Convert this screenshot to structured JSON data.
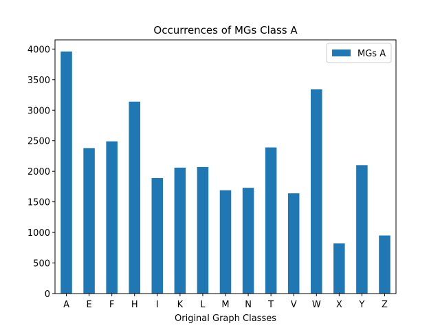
{
  "chart_data": {
    "type": "bar",
    "title": "Occurrences of MGs Class A",
    "xlabel": "Original Graph Classes",
    "ylabel": "",
    "categories": [
      "A",
      "E",
      "F",
      "H",
      "I",
      "K",
      "L",
      "M",
      "N",
      "T",
      "V",
      "W",
      "X",
      "Y",
      "Z"
    ],
    "series": [
      {
        "name": "MGs A",
        "color": "#1f77b4",
        "values": [
          3960,
          2380,
          2490,
          3140,
          1890,
          2060,
          2070,
          1690,
          1730,
          2390,
          1640,
          3340,
          820,
          2100,
          950
        ]
      }
    ],
    "ylim": [
      0,
      4150
    ],
    "yticks": [
      0,
      500,
      1000,
      1500,
      2000,
      2500,
      3000,
      3500,
      4000
    ],
    "grid": false,
    "legend": {
      "location": "top-right",
      "entries": [
        "MGs A"
      ]
    }
  }
}
